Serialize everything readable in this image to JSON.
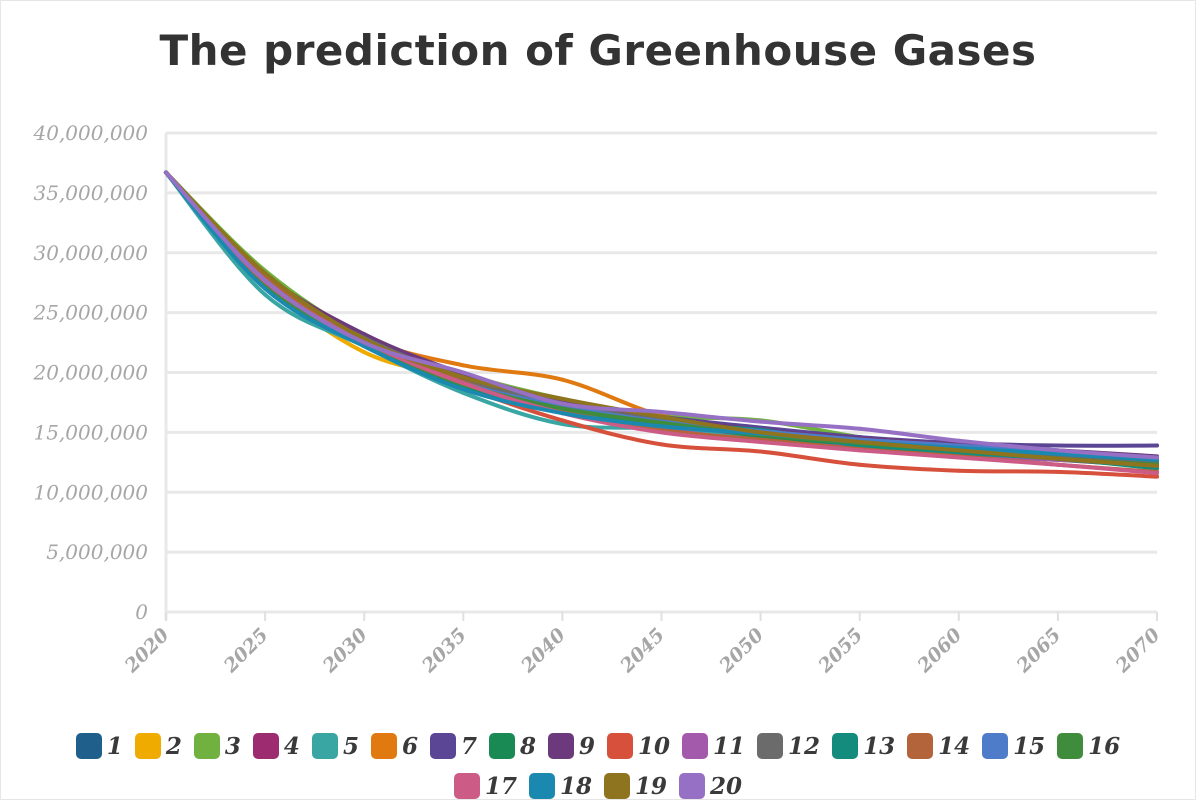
{
  "title": "The prediction of Greenhouse Gases",
  "chart_data": {
    "type": "line",
    "title": "The prediction of Greenhouse Gases",
    "xlabel": "",
    "ylabel": "",
    "xlim": [
      2020,
      2070
    ],
    "ylim": [
      0,
      40000000
    ],
    "x_ticks": [
      "2020",
      "2025",
      "2030",
      "2035",
      "2040",
      "2045",
      "2050",
      "2055",
      "2060",
      "2065",
      "2070"
    ],
    "y_ticks": [
      "0",
      "5,000,000",
      "10,000,000",
      "15,000,000",
      "20,000,000",
      "25,000,000",
      "30,000,000",
      "35,000,000",
      "40,000,000"
    ],
    "grid": "horizontal",
    "legend_position": "bottom",
    "x": [
      2020,
      2025,
      2030,
      2035,
      2040,
      2045,
      2050,
      2055,
      2060,
      2065,
      2070
    ],
    "series": [
      {
        "name": "1",
        "color": "#1f5f8b",
        "values": [
          36700000,
          27500000,
          22800000,
          19200000,
          17200000,
          15600000,
          14600000,
          13900000,
          13400000,
          12800000,
          12100000
        ]
      },
      {
        "name": "2",
        "color": "#f0ab00",
        "values": [
          36700000,
          27600000,
          21700000,
          19500000,
          17500000,
          16000000,
          14900000,
          14100000,
          13600000,
          13000000,
          12500000
        ]
      },
      {
        "name": "3",
        "color": "#71b13f",
        "values": [
          36700000,
          28500000,
          23000000,
          19900000,
          17800000,
          16400000,
          16000000,
          14600000,
          13500000,
          12900000,
          12100000
        ]
      },
      {
        "name": "4",
        "color": "#9c2c6f",
        "values": [
          36700000,
          27300000,
          22700000,
          19300000,
          17100000,
          15800000,
          14600000,
          13800000,
          13200000,
          12700000,
          12200000
        ]
      },
      {
        "name": "5",
        "color": "#3aa6a4",
        "values": [
          36700000,
          26500000,
          22200000,
          18300000,
          15700000,
          15300000,
          14400000,
          13700000,
          13200000,
          12700000,
          12400000
        ]
      },
      {
        "name": "6",
        "color": "#e07a10",
        "values": [
          36700000,
          28000000,
          22900000,
          20600000,
          19400000,
          16400000,
          15000000,
          14300000,
          13700000,
          13100000,
          12600000
        ]
      },
      {
        "name": "7",
        "color": "#5b4695",
        "values": [
          36700000,
          27800000,
          22800000,
          19900000,
          17500000,
          16300000,
          15400000,
          14600000,
          14100000,
          13900000,
          13900000
        ]
      },
      {
        "name": "8",
        "color": "#1a8a55",
        "values": [
          36700000,
          27200000,
          22400000,
          19400000,
          17100000,
          15900000,
          14700000,
          14000000,
          13500000,
          12900000,
          12300000
        ]
      },
      {
        "name": "9",
        "color": "#6c3a7c",
        "values": [
          36700000,
          28200000,
          23200000,
          19900000,
          17600000,
          16200000,
          15200000,
          14500000,
          14000000,
          13500000,
          13000000
        ]
      },
      {
        "name": "10",
        "color": "#d6503b",
        "values": [
          36700000,
          27600000,
          22300000,
          18800000,
          16000000,
          14000000,
          13400000,
          12300000,
          11800000,
          11700000,
          11300000
        ]
      },
      {
        "name": "11",
        "color": "#a35aaa",
        "values": [
          36700000,
          27700000,
          22500000,
          19000000,
          16900000,
          15300000,
          14300000,
          13700000,
          13200000,
          12700000,
          12600000
        ]
      },
      {
        "name": "12",
        "color": "#6b6b6b",
        "values": [
          36700000,
          27500000,
          22900000,
          19500000,
          17400000,
          16000000,
          15000000,
          14300000,
          13700000,
          13100000,
          12600000
        ]
      },
      {
        "name": "13",
        "color": "#138c7d",
        "values": [
          36700000,
          27100000,
          22400000,
          18800000,
          16900000,
          15700000,
          15200000,
          13900000,
          13300000,
          12800000,
          12000000
        ]
      },
      {
        "name": "14",
        "color": "#b3643a",
        "values": [
          36700000,
          27900000,
          22600000,
          19200000,
          16800000,
          15200000,
          14400000,
          13600000,
          13000000,
          12300000,
          11700000
        ]
      },
      {
        "name": "15",
        "color": "#4f7cc9",
        "values": [
          36700000,
          27400000,
          22500000,
          19100000,
          17200000,
          15900000,
          15100000,
          14400000,
          13900000,
          13300000,
          12800000
        ]
      },
      {
        "name": "16",
        "color": "#3f8c3c",
        "values": [
          36700000,
          27200000,
          22300000,
          19000000,
          17000000,
          15800000,
          14800000,
          14100000,
          13500000,
          12800000,
          12300000
        ]
      },
      {
        "name": "17",
        "color": "#cc5b86",
        "values": [
          36700000,
          27600000,
          22600000,
          19100000,
          16600000,
          15000000,
          14200000,
          13500000,
          12900000,
          12300000,
          11600000
        ]
      },
      {
        "name": "18",
        "color": "#1b88b0",
        "values": [
          36700000,
          27000000,
          22200000,
          18600000,
          16600000,
          15500000,
          14900000,
          14200000,
          13700000,
          13200000,
          12700000
        ]
      },
      {
        "name": "19",
        "color": "#8f7420",
        "values": [
          36700000,
          28300000,
          22800000,
          19600000,
          17800000,
          16300000,
          15000000,
          14200000,
          13500000,
          12800000,
          12200000
        ]
      },
      {
        "name": "20",
        "color": "#9670c4",
        "values": [
          36700000,
          27700000,
          22500000,
          20000000,
          17400000,
          16700000,
          15900000,
          15300000,
          14300000,
          13500000,
          12900000
        ]
      }
    ]
  }
}
